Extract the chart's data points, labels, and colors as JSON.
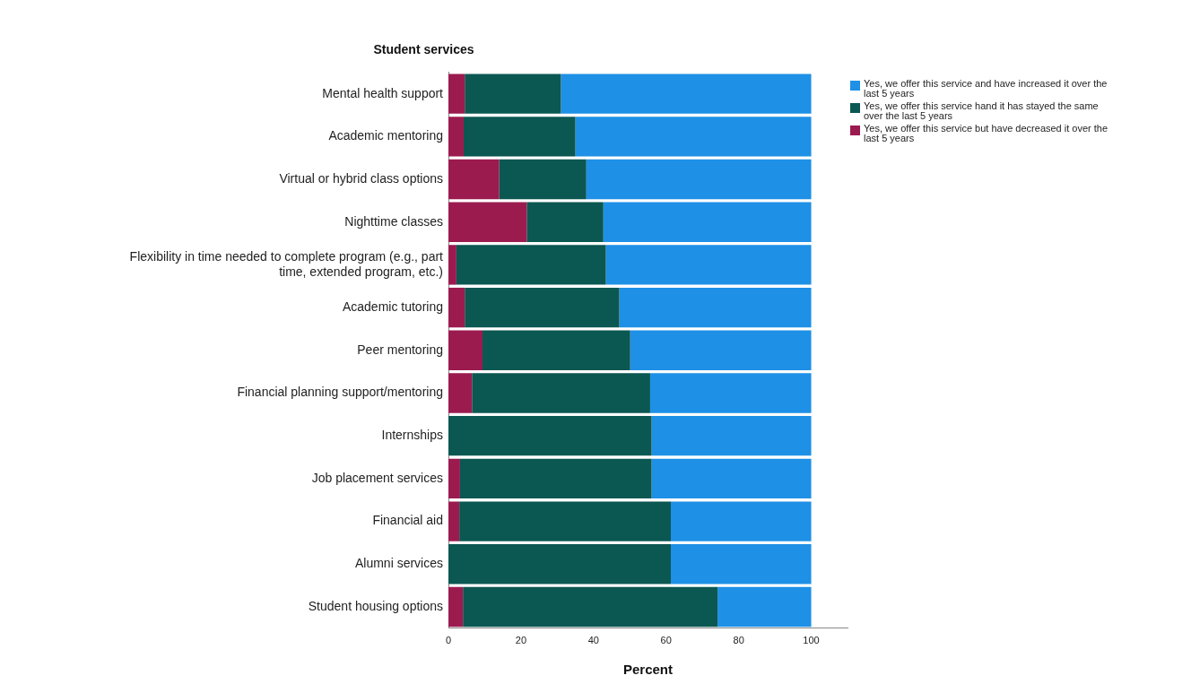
{
  "chart_data": {
    "type": "bar",
    "orientation": "horizontal",
    "stacked": true,
    "title": "Student services",
    "xlabel": "Percent",
    "categories": [
      "Mental health support",
      "Academic mentoring",
      "Virtual or hybrid class options",
      "Nighttime classes",
      "Flexibility in time needed to complete program (e.g., part time, extended program, etc.)",
      "Academic tutoring",
      "Peer mentoring",
      "Financial planning support/mentoring",
      "Internships",
      "Job placement services",
      "Financial aid",
      "Alumni services",
      "Student housing options"
    ],
    "series": [
      {
        "name": "Yes, we offer this service but have decreased it over the last 5 years",
        "color": "#9b1b4f",
        "values": [
          4.5,
          4.2,
          14,
          21.6,
          2.2,
          4.5,
          9.4,
          6.5,
          0,
          3.2,
          3,
          0,
          4
        ]
      },
      {
        "name": "Yes, we offer this service hand it has stayed the same over the last 5 years",
        "color": "#0b5752",
        "values": [
          26.5,
          30.8,
          24,
          21.1,
          41.2,
          42.6,
          40.7,
          49.1,
          56,
          52.8,
          58.3,
          61.3,
          70.2
        ]
      },
      {
        "name": "Yes, we offer this service and have increased it over the last 5 years",
        "color": "#1e90e6",
        "values": [
          69,
          65,
          62,
          57.3,
          56.6,
          52.9,
          49.9,
          44.4,
          44,
          44,
          38.7,
          38.7,
          25.8
        ]
      }
    ],
    "xlim": [
      0,
      110
    ],
    "xticks": [
      0,
      20,
      40,
      60,
      80,
      100
    ],
    "grid": false,
    "legend": "top right"
  }
}
